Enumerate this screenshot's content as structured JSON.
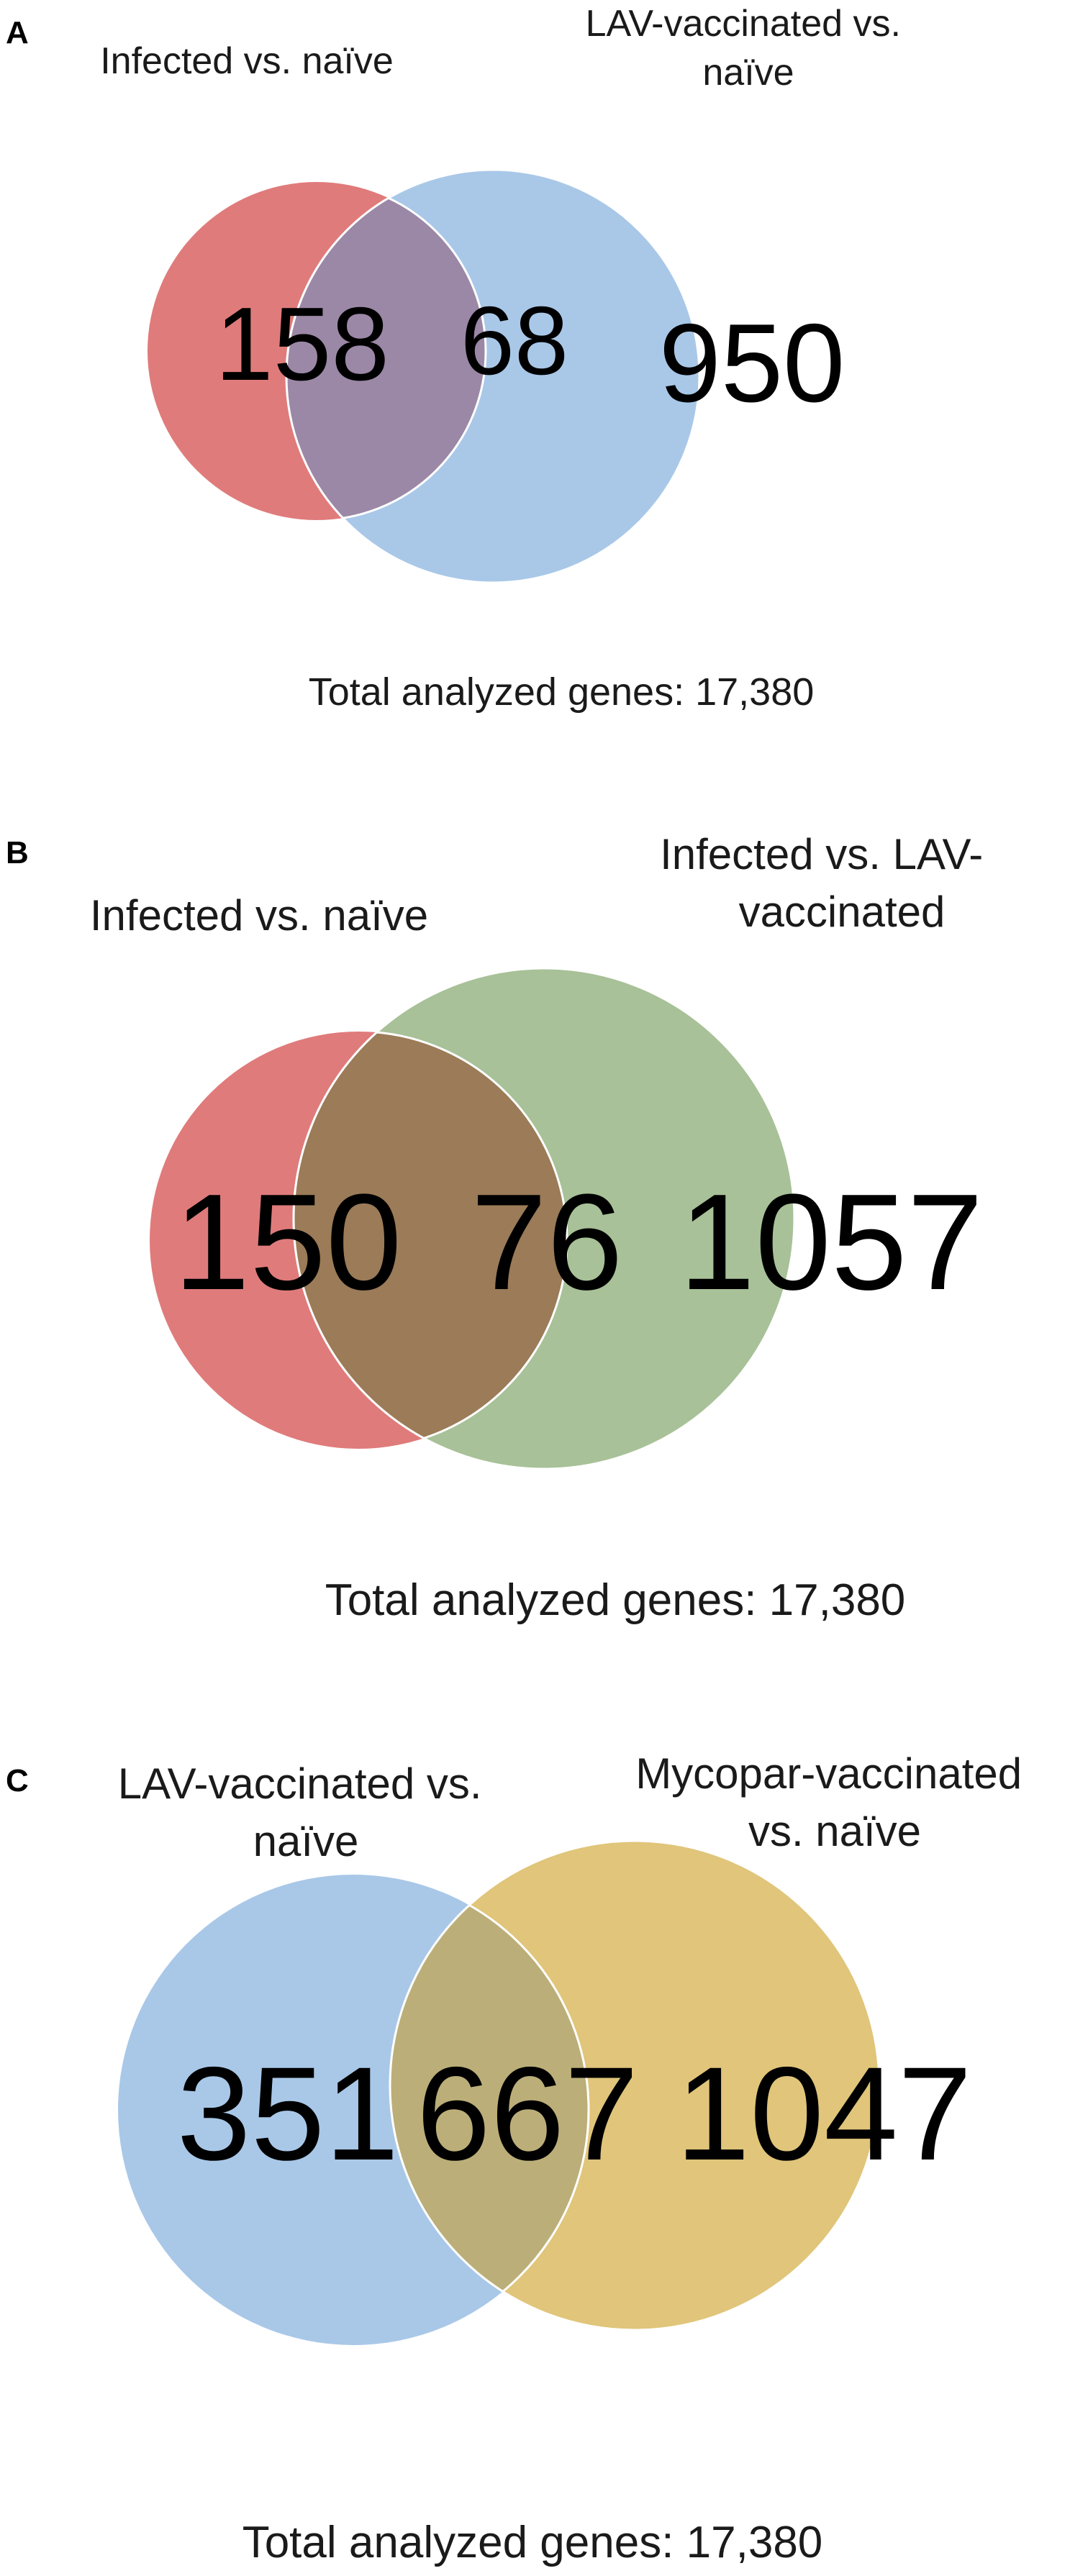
{
  "panels": [
    {
      "letter": "A",
      "set_left": {
        "label_lines": [
          "Infected vs. naïve"
        ],
        "color": "#e07b7b",
        "unique": "158"
      },
      "set_right": {
        "label_lines": [
          "LAV-vaccinated vs.",
          "naïve"
        ],
        "color": "#a9c8e8",
        "unique": "950"
      },
      "overlap": {
        "color": "#9b88a6",
        "count": "68"
      },
      "total": "Total analyzed genes: 17,380"
    },
    {
      "letter": "B",
      "set_left": {
        "label_lines": [
          "Infected vs. naïve"
        ],
        "color": "#e07b7b",
        "unique": "150"
      },
      "set_right": {
        "label_lines": [
          "Infected vs. LAV-",
          "vaccinated"
        ],
        "color": "#a8c198",
        "unique": "1057"
      },
      "overlap": {
        "color": "#9b7b58",
        "count": "76"
      },
      "total": "Total analyzed genes: 17,380"
    },
    {
      "letter": "C",
      "set_left": {
        "label_lines": [
          "LAV-vaccinated vs.",
          "naïve"
        ],
        "color": "#a9c8e8",
        "unique": "351"
      },
      "set_right": {
        "label_lines": [
          "Mycopar-vaccinated",
          "vs. naïve"
        ],
        "color": "#e0c57a",
        "unique": "1047"
      },
      "overlap": {
        "color": "#bbae78",
        "count": "667"
      },
      "total": "Total analyzed genes: 17,380"
    }
  ]
}
